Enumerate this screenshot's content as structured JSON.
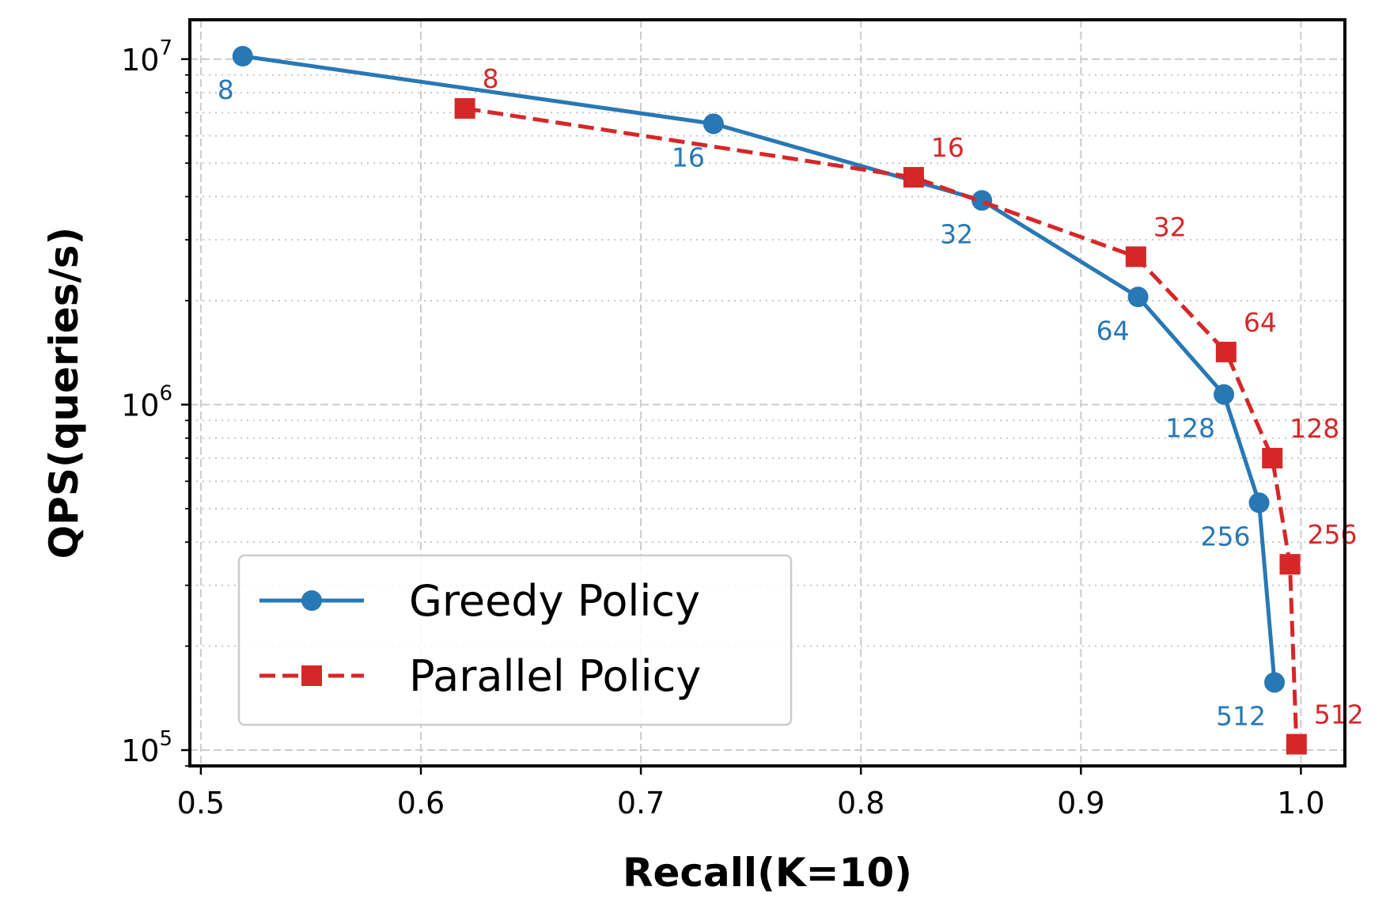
{
  "chart_data": {
    "type": "line",
    "title": "",
    "xlabel": "Recall(K=10)",
    "ylabel": "QPS(queries/s)",
    "xlim": [
      0.495,
      1.02
    ],
    "ylim": [
      90000,
      13000000
    ],
    "yscale": "log",
    "grid": true,
    "legend_position": "lower-left",
    "x_ticks": [
      {
        "value": 0.5,
        "label": "0.5"
      },
      {
        "value": 0.6,
        "label": "0.6"
      },
      {
        "value": 0.7,
        "label": "0.7"
      },
      {
        "value": 0.8,
        "label": "0.8"
      },
      {
        "value": 0.9,
        "label": "0.9"
      },
      {
        "value": 1.0,
        "label": "1.0"
      }
    ],
    "y_ticks": [
      {
        "value": 100000,
        "base": "10",
        "exponent": "5"
      },
      {
        "value": 1000000,
        "base": "10",
        "exponent": "6"
      },
      {
        "value": 10000000,
        "base": "10",
        "exponent": "7"
      }
    ],
    "series": [
      {
        "name": "Greedy Policy",
        "color": "#2878b5",
        "line_style": "solid",
        "marker": "circle",
        "label_side": "lower-left",
        "points": [
          {
            "x": 0.519,
            "y": 10200000,
            "label": "8"
          },
          {
            "x": 0.733,
            "y": 6500000,
            "label": "16"
          },
          {
            "x": 0.855,
            "y": 3900000,
            "label": "32"
          },
          {
            "x": 0.926,
            "y": 2050000,
            "label": "64"
          },
          {
            "x": 0.965,
            "y": 1070000,
            "label": "128"
          },
          {
            "x": 0.981,
            "y": 520000,
            "label": "256"
          },
          {
            "x": 0.988,
            "y": 157000,
            "label": "512"
          }
        ]
      },
      {
        "name": "Parallel Policy",
        "color": "#d62728",
        "line_style": "dashed",
        "marker": "square",
        "label_side": "upper-right",
        "points": [
          {
            "x": 0.62,
            "y": 7200000,
            "label": "8"
          },
          {
            "x": 0.824,
            "y": 4550000,
            "label": "16"
          },
          {
            "x": 0.925,
            "y": 2680000,
            "label": "32"
          },
          {
            "x": 0.966,
            "y": 1420000,
            "label": "64"
          },
          {
            "x": 0.987,
            "y": 700000,
            "label": "128"
          },
          {
            "x": 0.995,
            "y": 345000,
            "label": "256"
          },
          {
            "x": 0.998,
            "y": 104000,
            "label": "512"
          }
        ]
      }
    ]
  }
}
